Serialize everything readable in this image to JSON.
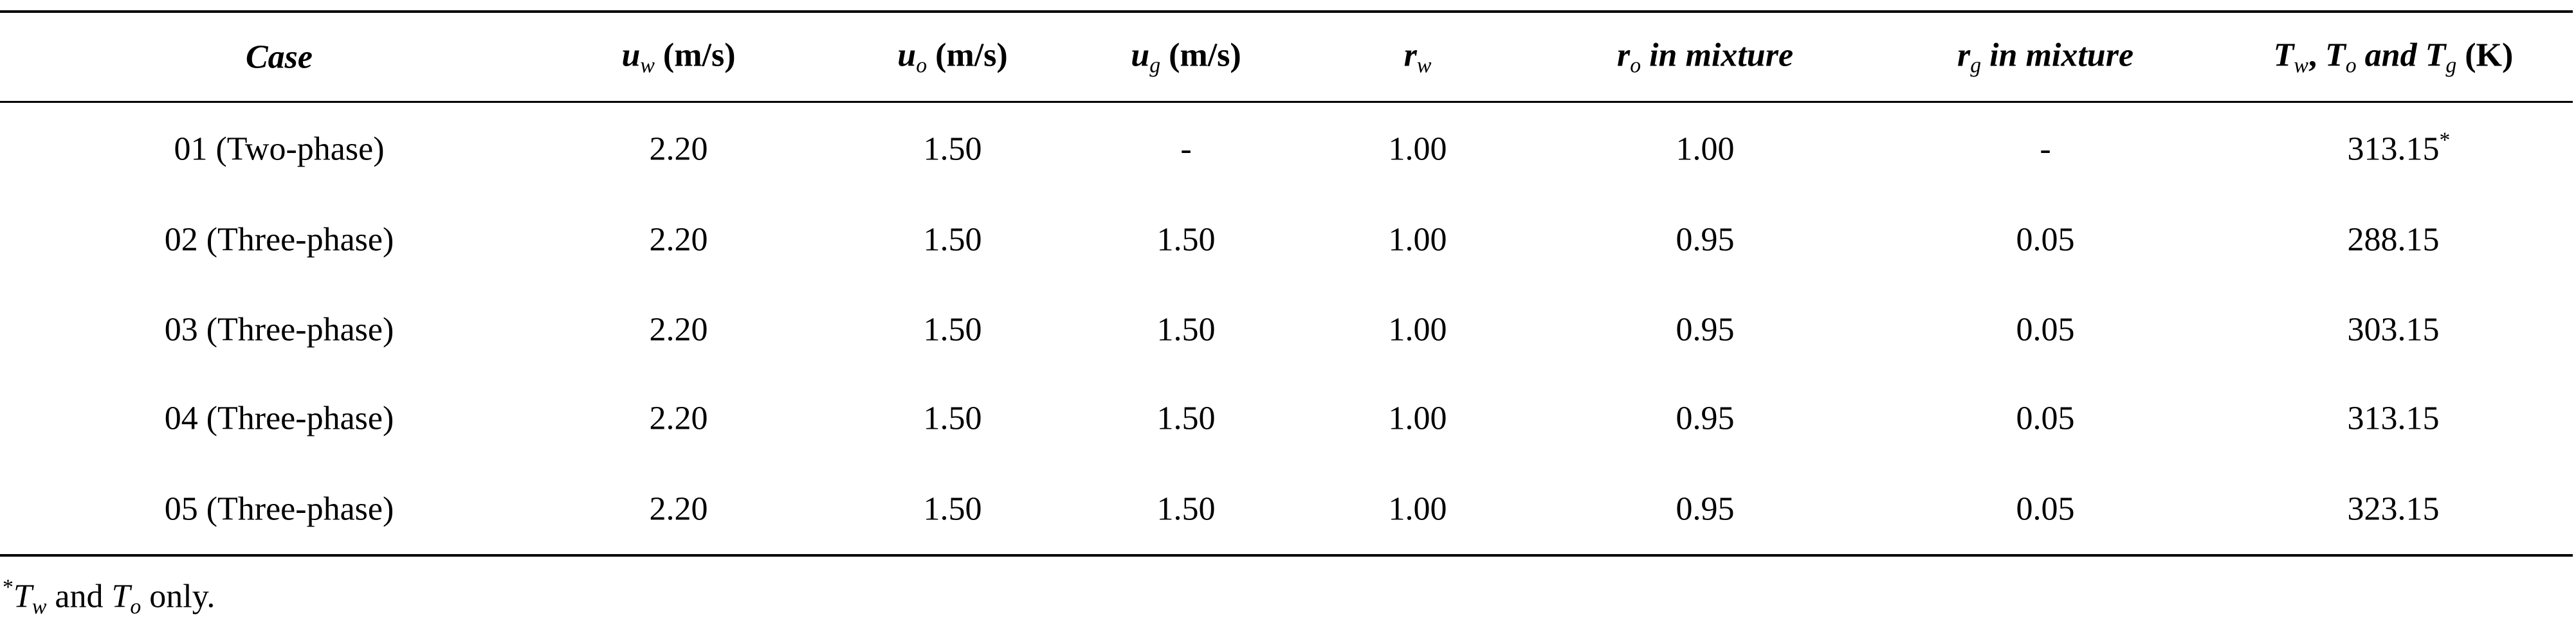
{
  "table": {
    "header": [
      [
        {
          "text": "Case",
          "format": "bold-italic"
        }
      ],
      [
        {
          "text": "u",
          "format": "bold-italic"
        },
        {
          "text": "w",
          "format": "sub"
        },
        {
          "text": " (m/s)",
          "format": "bold"
        }
      ],
      [
        {
          "text": "u",
          "format": "bold-italic"
        },
        {
          "text": "o",
          "format": "sub"
        },
        {
          "text": " (m/s)",
          "format": "bold"
        }
      ],
      [
        {
          "text": "u",
          "format": "bold-italic"
        },
        {
          "text": "g",
          "format": "sub"
        },
        {
          "text": " (m/s)",
          "format": "bold"
        }
      ],
      [
        {
          "text": "r",
          "format": "bold-italic"
        },
        {
          "text": "w",
          "format": "sub"
        }
      ],
      [
        {
          "text": "r",
          "format": "bold-italic"
        },
        {
          "text": "o",
          "format": "sub"
        },
        {
          "text": " in mixture",
          "format": "bold-italic"
        }
      ],
      [
        {
          "text": "r",
          "format": "bold-italic"
        },
        {
          "text": "g",
          "format": "sub"
        },
        {
          "text": " in mixture",
          "format": "bold-italic"
        }
      ],
      [
        {
          "text": "T",
          "format": "bold-italic"
        },
        {
          "text": "w",
          "format": "sub"
        },
        {
          "text": ", ",
          "format": "bold"
        },
        {
          "text": "T",
          "format": "bold-italic"
        },
        {
          "text": "o",
          "format": "sub"
        },
        {
          "text": " and ",
          "format": "bold-italic"
        },
        {
          "text": "T",
          "format": "bold-italic"
        },
        {
          "text": "g",
          "format": "sub"
        },
        {
          "text": " (K)",
          "format": "bold"
        }
      ]
    ],
    "rows": [
      [
        "01 (Two-phase)",
        "2.20",
        "1.50",
        "-",
        "1.00",
        "1.00",
        "-",
        {
          "text": "313.15",
          "sup": "*"
        }
      ],
      [
        "02 (Three-phase)",
        "2.20",
        "1.50",
        "1.50",
        "1.00",
        "0.95",
        "0.05",
        "288.15"
      ],
      [
        "03 (Three-phase)",
        "2.20",
        "1.50",
        "1.50",
        "1.00",
        "0.95",
        "0.05",
        "303.15"
      ],
      [
        "04 (Three-phase)",
        "2.20",
        "1.50",
        "1.50",
        "1.00",
        "0.95",
        "0.05",
        "313.15"
      ],
      [
        "05 (Three-phase)",
        "2.20",
        "1.50",
        "1.50",
        "1.00",
        "0.95",
        "0.05",
        "323.15"
      ]
    ],
    "footnote": [
      {
        "text": "*",
        "format": "sup"
      },
      {
        "text": "T",
        "format": "italic"
      },
      {
        "text": "w",
        "format": "sub"
      },
      {
        "text": " and ",
        "format": "normal"
      },
      {
        "text": "T",
        "format": "italic"
      },
      {
        "text": "o",
        "format": "sub"
      },
      {
        "text": " only.",
        "format": "normal"
      }
    ]
  }
}
